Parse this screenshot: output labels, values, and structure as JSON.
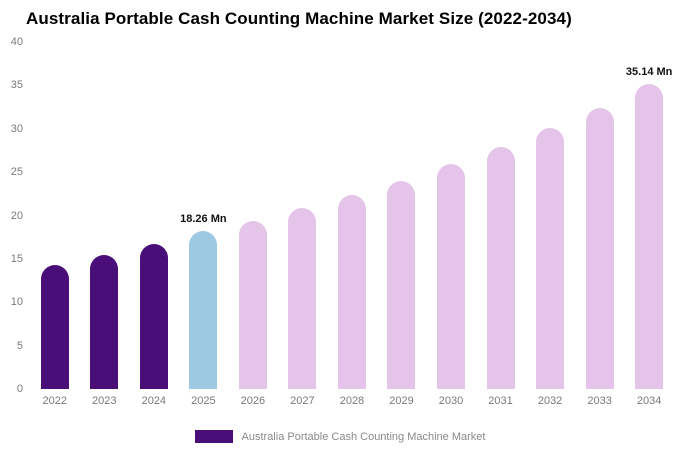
{
  "title": "Australia Portable Cash Counting Machine Market Size (2022-2034)",
  "legend": {
    "label": "Australia Portable Cash Counting Machine Market",
    "swatch_color": "#4a0e78"
  },
  "colors": {
    "historical": "#4a0e78",
    "base_year": "#9ec9e2",
    "forecast": "#e5c4e9",
    "axis_text": "#7a7a7a",
    "label_text": "#111111"
  },
  "chart_data": {
    "type": "bar",
    "title": "Australia Portable Cash Counting Machine Market Size (2022-2034)",
    "xlabel": "",
    "ylabel": "",
    "categories": [
      "2022",
      "2023",
      "2024",
      "2025",
      "2026",
      "2027",
      "2028",
      "2029",
      "2030",
      "2031",
      "2032",
      "2033",
      "2034"
    ],
    "values": [
      14.3,
      15.5,
      16.7,
      18.26,
      19.4,
      20.9,
      22.4,
      24.0,
      25.9,
      27.9,
      30.1,
      32.4,
      35.14
    ],
    "bar_colors": [
      "#4a0e78",
      "#4a0e78",
      "#4a0e78",
      "#9ec9e2",
      "#e5c4e9",
      "#e5c4e9",
      "#e5c4e9",
      "#e5c4e9",
      "#e5c4e9",
      "#e5c4e9",
      "#e5c4e9",
      "#e5c4e9",
      "#e5c4e9"
    ],
    "ylim": [
      0,
      40
    ],
    "yticks": [
      0,
      5,
      10,
      15,
      20,
      25,
      30,
      35,
      40
    ],
    "grid": false,
    "legend_position": "bottom",
    "annotations": [
      {
        "category": "2025",
        "text": "18.26 Mn"
      },
      {
        "category": "2034",
        "text": "35.14 Mn"
      }
    ]
  }
}
